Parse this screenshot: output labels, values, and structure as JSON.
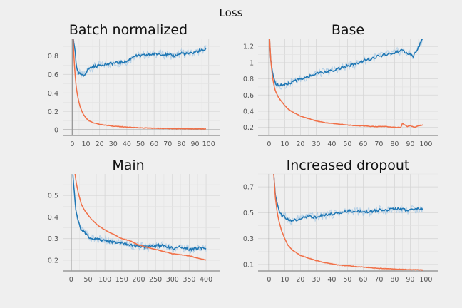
{
  "figure": {
    "title": "Loss"
  },
  "colors": {
    "blue": "#1f77b4",
    "blue_light": "#a6c8e4",
    "orange": "#f07048",
    "orange_light": "#f8b79f",
    "grid": "#d6d6d6",
    "axis": "#9a9a9a"
  },
  "chart_data": [
    {
      "type": "line",
      "title": "Batch normalized",
      "xlim": [
        -7,
        108
      ],
      "ylim": [
        -0.06,
        0.98
      ],
      "xticks": [
        0,
        10,
        20,
        30,
        40,
        50,
        60,
        70,
        80,
        90,
        100
      ],
      "xtick_labels": [
        "0",
        "10",
        "20",
        "30",
        "40",
        "50",
        "60",
        "70",
        "80",
        "90",
        "100"
      ],
      "yticks": [
        0,
        0.2,
        0.4,
        0.6,
        0.8
      ],
      "ytick_labels": [
        "0",
        "0.2",
        "0.4",
        "0.6",
        "0.8"
      ],
      "series": [
        {
          "color": "blue",
          "x": [
            0,
            1,
            2,
            3,
            4,
            6,
            8,
            10,
            12,
            15,
            18,
            20,
            25,
            30,
            35,
            40,
            43,
            45,
            50,
            55,
            60,
            65,
            70,
            75,
            80,
            85,
            90,
            95,
            98
          ],
          "y": [
            1.1,
            0.95,
            0.88,
            0.68,
            0.62,
            0.6,
            0.58,
            0.62,
            0.66,
            0.68,
            0.69,
            0.7,
            0.71,
            0.72,
            0.73,
            0.74,
            0.77,
            0.8,
            0.8,
            0.81,
            0.82,
            0.82,
            0.81,
            0.8,
            0.83,
            0.82,
            0.84,
            0.86,
            0.87
          ]
        },
        {
          "color": "orange",
          "x": [
            0,
            1,
            2,
            3,
            4,
            5,
            6,
            8,
            10,
            12,
            15,
            20,
            25,
            30,
            40,
            50,
            60,
            70,
            80,
            90,
            98
          ],
          "y": [
            1.2,
            0.85,
            0.6,
            0.45,
            0.36,
            0.29,
            0.24,
            0.17,
            0.13,
            0.1,
            0.08,
            0.06,
            0.05,
            0.04,
            0.03,
            0.022,
            0.018,
            0.015,
            0.013,
            0.011,
            0.01
          ]
        }
      ]
    },
    {
      "type": "line",
      "title": "Base",
      "xlim": [
        -7,
        108
      ],
      "ylim": [
        0.1,
        1.29
      ],
      "xticks": [
        0,
        10,
        20,
        30,
        40,
        50,
        60,
        70,
        80,
        90,
        100
      ],
      "xtick_labels": [
        "0",
        "10",
        "20",
        "30",
        "40",
        "50",
        "60",
        "70",
        "80",
        "90",
        "100"
      ],
      "yticks": [
        0.2,
        0.4,
        0.6,
        0.8,
        1.0,
        1.2
      ],
      "ytick_labels": [
        "0.2",
        "0.4",
        "0.6",
        "0.8",
        "1",
        "1.2"
      ],
      "series": [
        {
          "color": "blue",
          "x": [
            0,
            1,
            2,
            3,
            4,
            6,
            8,
            10,
            15,
            20,
            25,
            30,
            35,
            40,
            45,
            50,
            55,
            60,
            65,
            70,
            75,
            80,
            84,
            88,
            92,
            95,
            98
          ],
          "y": [
            1.4,
            1.05,
            0.9,
            0.8,
            0.75,
            0.72,
            0.72,
            0.73,
            0.76,
            0.8,
            0.83,
            0.86,
            0.88,
            0.9,
            0.93,
            0.96,
            0.98,
            1.02,
            1.05,
            1.08,
            1.1,
            1.12,
            1.15,
            1.12,
            1.08,
            1.18,
            1.3
          ]
        },
        {
          "color": "orange",
          "x": [
            0,
            1,
            2,
            3,
            4,
            6,
            8,
            10,
            12,
            15,
            20,
            25,
            30,
            35,
            40,
            45,
            50,
            55,
            60,
            65,
            70,
            75,
            80,
            84,
            85,
            88,
            90,
            93,
            95,
            98
          ],
          "y": [
            1.45,
            1.05,
            0.85,
            0.73,
            0.65,
            0.57,
            0.52,
            0.47,
            0.43,
            0.39,
            0.34,
            0.31,
            0.28,
            0.26,
            0.25,
            0.24,
            0.23,
            0.22,
            0.22,
            0.21,
            0.21,
            0.21,
            0.2,
            0.2,
            0.25,
            0.21,
            0.22,
            0.2,
            0.22,
            0.23
          ]
        }
      ]
    },
    {
      "type": "line",
      "title": "Main",
      "xlim": [
        -25,
        440
      ],
      "ylim": [
        0.15,
        0.6
      ],
      "xticks": [
        0,
        50,
        100,
        150,
        200,
        250,
        300,
        350,
        400
      ],
      "xtick_labels": [
        "0",
        "50",
        "100",
        "150",
        "200",
        "250",
        "300",
        "350",
        "400"
      ],
      "yticks": [
        0.2,
        0.3,
        0.4,
        0.5
      ],
      "ytick_labels": [
        "0.2",
        "0.3",
        "0.4",
        "0.5"
      ],
      "series": [
        {
          "color": "blue",
          "x": [
            5,
            10,
            15,
            20,
            25,
            30,
            40,
            50,
            60,
            80,
            100,
            120,
            150,
            175,
            200,
            225,
            250,
            275,
            300,
            325,
            350,
            375,
            400
          ],
          "y": [
            0.6,
            0.5,
            0.42,
            0.39,
            0.36,
            0.34,
            0.33,
            0.31,
            0.3,
            0.295,
            0.29,
            0.285,
            0.28,
            0.27,
            0.265,
            0.26,
            0.265,
            0.27,
            0.255,
            0.26,
            0.25,
            0.255,
            0.255
          ]
        },
        {
          "color": "orange",
          "x": [
            10,
            15,
            20,
            25,
            30,
            40,
            50,
            60,
            80,
            100,
            125,
            150,
            175,
            200,
            225,
            250,
            275,
            300,
            325,
            350,
            375,
            400
          ],
          "y": [
            0.62,
            0.56,
            0.52,
            0.49,
            0.46,
            0.43,
            0.41,
            0.39,
            0.36,
            0.34,
            0.32,
            0.3,
            0.29,
            0.27,
            0.26,
            0.25,
            0.24,
            0.23,
            0.225,
            0.22,
            0.21,
            0.2
          ]
        }
      ]
    },
    {
      "type": "line",
      "title": "Increased dropout",
      "xlim": [
        -7,
        108
      ],
      "ylim": [
        0.05,
        0.8
      ],
      "xticks": [
        0,
        10,
        20,
        30,
        40,
        50,
        60,
        70,
        80,
        90,
        100
      ],
      "xtick_labels": [
        "0",
        "10",
        "20",
        "30",
        "40",
        "50",
        "60",
        "70",
        "80",
        "90",
        "100"
      ],
      "yticks": [
        0.1,
        0.3,
        0.5,
        0.7
      ],
      "ytick_labels": [
        "0.1",
        "0.3",
        "0.5",
        "0.7"
      ],
      "series": [
        {
          "color": "blue",
          "x": [
            3,
            4,
            5,
            6,
            7,
            8,
            10,
            12,
            15,
            18,
            20,
            25,
            30,
            35,
            40,
            45,
            50,
            55,
            60,
            65,
            70,
            75,
            80,
            85,
            90,
            95,
            98
          ],
          "y": [
            0.8,
            0.65,
            0.58,
            0.53,
            0.5,
            0.48,
            0.47,
            0.45,
            0.44,
            0.45,
            0.46,
            0.47,
            0.465,
            0.48,
            0.49,
            0.5,
            0.51,
            0.515,
            0.505,
            0.51,
            0.52,
            0.52,
            0.53,
            0.525,
            0.52,
            0.53,
            0.53
          ]
        },
        {
          "color": "orange",
          "x": [
            3,
            4,
            5,
            6,
            8,
            10,
            12,
            15,
            20,
            25,
            30,
            35,
            40,
            45,
            50,
            60,
            70,
            80,
            90,
            98
          ],
          "y": [
            0.8,
            0.62,
            0.52,
            0.45,
            0.36,
            0.3,
            0.25,
            0.21,
            0.17,
            0.15,
            0.13,
            0.115,
            0.105,
            0.095,
            0.09,
            0.08,
            0.07,
            0.065,
            0.06,
            0.058
          ]
        }
      ]
    }
  ]
}
